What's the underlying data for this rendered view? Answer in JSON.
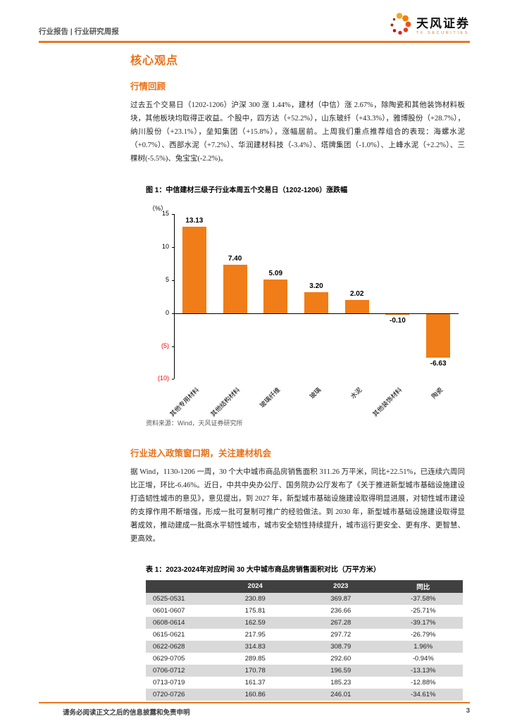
{
  "colors": {
    "accent": "#E87722",
    "heading": "#E87119",
    "bar": "#F07D17",
    "negative_tick": "#FF0000",
    "table_header_bg": "#404040",
    "table_alt_row": "#D9D9D9"
  },
  "header": {
    "left_text": "行业报告 | 行业研究周报",
    "brand_name": "天风证券",
    "brand_sub": "TF SECURITIES"
  },
  "sections": {
    "core_title": "核心观点",
    "review_title": "行情回顾",
    "review_body": "过去五个交易日（1202-1206）沪深 300 涨 1.44%，建材（中信）涨 2.67%，除陶瓷和其他装饰材料板块，其他板块均取得正收益。个股中，四方达（+52.2%），山东玻纤（+43.3%），雅博股份（+28.7%），纳川股份（+23.1%），垒知集团（+15.8%），涨幅居前。上周我们重点推荐组合的表现：海螺水泥（+0.7%）、西部水泥（+7.2%）、华润建材科技（-3.4%）、塔牌集团（-1.0%）、上峰水泥（+2.2%）、三棵树(-5.5%)、兔宝宝(-2.2%)。",
    "policy_title": "行业进入政策窗口期，关注建材机会",
    "policy_body": "据 Wind，1130-1206 一周，30 个大中城市商品房销售面积 311.26 万平米，同比+22.51%，已连续六周同比正增，环比-6.46%。近日，中共中央办公厅、国务院办公厅发布了《关于推进新型城市基础设施建设打造韧性城市的意见》，意见提出，到 2027 年，新型城市基础设施建设取得明显进展，对韧性城市建设的支撑作用不断增强，形成一批可复制可推广的经验做法。到 2030 年，新型城市基础设施建设取得显著成效，推动建成一批高水平韧性城市，城市安全韧性持续提升，城市运行更安全、更有序、更智慧、更高效。"
  },
  "figure": {
    "title": "图 1：中信建材三级子行业本周五个交易日（1202-1206）涨跌幅",
    "source": "资料来源：Wind，天风证券研究所"
  },
  "chart_data": {
    "type": "bar",
    "title": "中信建材三级子行业本周五个交易日（1202-1206）涨跌幅",
    "categories": [
      "其他专用材料",
      "其他结构材料",
      "玻璃纤维",
      "玻璃",
      "水泥",
      "其他装饰材料",
      "陶瓷"
    ],
    "values": [
      13.13,
      7.4,
      5.09,
      3.2,
      2.02,
      -0.1,
      -6.63
    ],
    "xlabel": "",
    "ylabel": "（%）",
    "ylim": [
      -10,
      15
    ],
    "yticks": [
      15,
      10,
      5,
      0,
      -5,
      -10
    ],
    "grid": false,
    "legend": "none",
    "bar_color": "#F07D17"
  },
  "table": {
    "title": "表 1：2023-2024年对应时间 30 大中城市商品房销售面积对比（万平方米）",
    "headers": [
      "",
      "2024",
      "2023",
      "同比"
    ],
    "rows": [
      [
        "0525-0531",
        "230.89",
        "369.87",
        "-37.58%"
      ],
      [
        "0601-0607",
        "175.81",
        "236.66",
        "-25.71%"
      ],
      [
        "0608-0614",
        "162.59",
        "267.28",
        "-39.17%"
      ],
      [
        "0615-0621",
        "217.95",
        "297.72",
        "-26.79%"
      ],
      [
        "0622-0628",
        "314.83",
        "308.79",
        "1.96%"
      ],
      [
        "0629-0705",
        "289.85",
        "292.60",
        "-0.94%"
      ],
      [
        "0706-0712",
        "170.78",
        "196.59",
        "-13.13%"
      ],
      [
        "0713-0719",
        "161.37",
        "185.23",
        "-12.88%"
      ],
      [
        "0720-0726",
        "160.86",
        "246.01",
        "-34.61%"
      ]
    ]
  },
  "footer": {
    "disclaimer": "请务必阅读正文之后的信息披露和免责申明",
    "page_number": "3"
  }
}
